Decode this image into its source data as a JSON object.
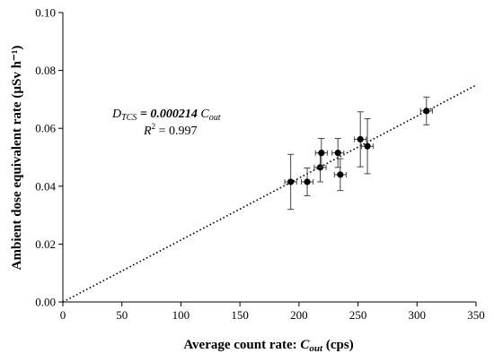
{
  "chart_data": {
    "type": "scatter",
    "xlabel_main": "Average count rate: ",
    "xlabel_var": "C",
    "xlabel_sub": "out",
    "xlabel_unit": " (cps)",
    "ylabel": "Ambient dose equivalent rate (µSv h⁻¹)",
    "xlim": [
      0,
      350
    ],
    "ylim": [
      0,
      0.1
    ],
    "x_ticks": [
      "0",
      "50",
      "100",
      "150",
      "200",
      "250",
      "300",
      "350"
    ],
    "y_ticks": [
      "0.00",
      "0.02",
      "0.04",
      "0.06",
      "0.08",
      "0.10"
    ],
    "grid": false,
    "points": [
      {
        "x": 193,
        "y": 0.0415,
        "xerr": 5,
        "yerr": 0.0095
      },
      {
        "x": 207,
        "y": 0.0415,
        "xerr": 5,
        "yerr": 0.0048
      },
      {
        "x": 218,
        "y": 0.0465,
        "xerr": 5,
        "yerr": 0.005
      },
      {
        "x": 219,
        "y": 0.0515,
        "xerr": 5,
        "yerr": 0.005
      },
      {
        "x": 233,
        "y": 0.0515,
        "xerr": 5,
        "yerr": 0.005
      },
      {
        "x": 235,
        "y": 0.044,
        "xerr": 5,
        "yerr": 0.0055
      },
      {
        "x": 252,
        "y": 0.0562,
        "xerr": 5,
        "yerr": 0.0095
      },
      {
        "x": 258,
        "y": 0.0538,
        "xerr": 5,
        "yerr": 0.0095
      },
      {
        "x": 308,
        "y": 0.066,
        "xerr": 5,
        "yerr": 0.0048
      }
    ],
    "fit": {
      "slope": 0.000214,
      "intercept": 0
    },
    "annotation": {
      "line1_var": "D",
      "line1_sub": "TCS",
      "line1_rest": " = 0.000214 ",
      "line1_var2": "C",
      "line1_sub2": "out",
      "line2_var": "R",
      "line2_sup": "2",
      "line2_rest": " = 0.997"
    }
  }
}
